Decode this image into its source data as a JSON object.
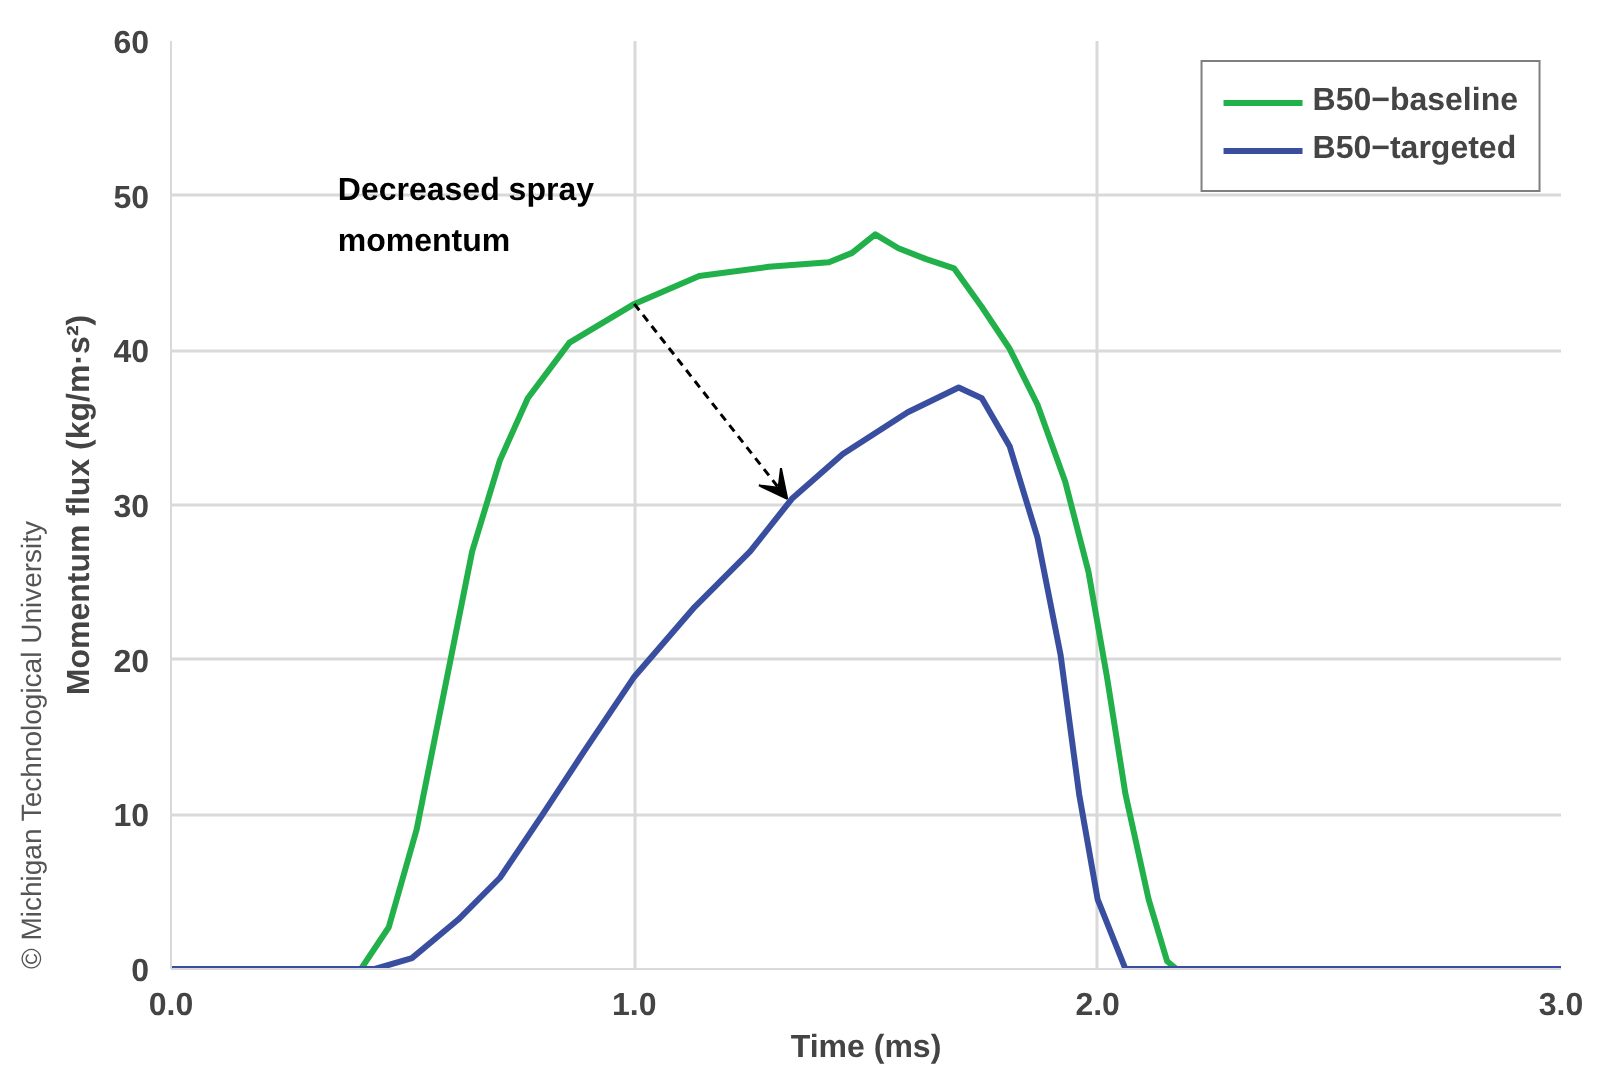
{
  "chart_data": {
    "type": "line",
    "xlabel": "Time (ms)",
    "ylabel": "Momentum flux (kg/m·s²)",
    "xlim": [
      0,
      3
    ],
    "ylim": [
      0,
      60
    ],
    "xticks": [
      {
        "value": 0,
        "label": "0.0"
      },
      {
        "value": 1,
        "label": "1.0"
      },
      {
        "value": 2,
        "label": "2.0"
      },
      {
        "value": 3,
        "label": "3.0"
      }
    ],
    "yticks": [
      0,
      10,
      20,
      30,
      40,
      50,
      60
    ],
    "grid": true,
    "legend": "top right",
    "marker": "none",
    "line_style": "solid",
    "series": [
      {
        "name": "B50−baseline",
        "color": "#22b04b",
        "x": [
          0,
          0.41,
          0.47,
          0.53,
          0.59,
          0.65,
          0.71,
          0.77,
          0.86,
          1.0,
          1.14,
          1.29,
          1.42,
          1.47,
          1.52,
          1.57,
          1.63,
          1.69,
          1.75,
          1.81,
          1.87,
          1.93,
          1.98,
          2.02,
          2.06,
          2.11,
          2.15,
          2.17,
          3.0
        ],
        "values": [
          0,
          0,
          2.7,
          9,
          18,
          27,
          32.9,
          36.9,
          40.5,
          43,
          44.8,
          45.4,
          45.7,
          46.3,
          47.5,
          46.6,
          45.9,
          45.3,
          42.8,
          40.1,
          36.5,
          31.5,
          25.7,
          18.9,
          11.3,
          4.5,
          0.5,
          0,
          0
        ]
      },
      {
        "name": "B50−targeted",
        "color": "#3a4ea0",
        "x": [
          0,
          0.44,
          0.52,
          0.62,
          0.71,
          0.8,
          0.89,
          1.0,
          1.13,
          1.25,
          1.34,
          1.45,
          1.59,
          1.7,
          1.75,
          1.81,
          1.87,
          1.92,
          1.96,
          2.0,
          2.06,
          3.0
        ],
        "values": [
          0,
          0,
          0.7,
          3.2,
          5.9,
          9.9,
          14,
          18.9,
          23.4,
          27,
          30.4,
          33.3,
          36,
          37.6,
          36.9,
          33.8,
          27.9,
          20.3,
          11.3,
          4.5,
          0,
          0
        ]
      }
    ],
    "annotations": [
      "Decreased spray\nmomentum",
      "© Michigan Technological University"
    ]
  }
}
